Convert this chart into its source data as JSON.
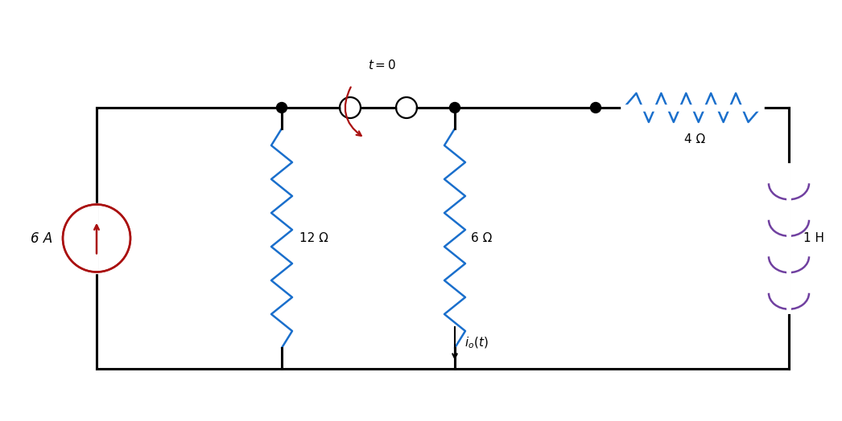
{
  "bg_color": "#ffffff",
  "wire_color": "#000000",
  "resistor_color": "#1a6fcc",
  "inductor_color": "#7040a0",
  "source_color": "#aa1111",
  "arrow_color": "#aa1111",
  "figsize": [
    10.46,
    5.24
  ],
  "dpi": 100,
  "label_6A": "6 A",
  "label_12ohm": "12 Ω",
  "label_6ohm": "6 Ω",
  "label_4ohm": "4 Ω",
  "label_1H": "1 H",
  "lw_wire": 2.2,
  "lw_comp": 1.8
}
